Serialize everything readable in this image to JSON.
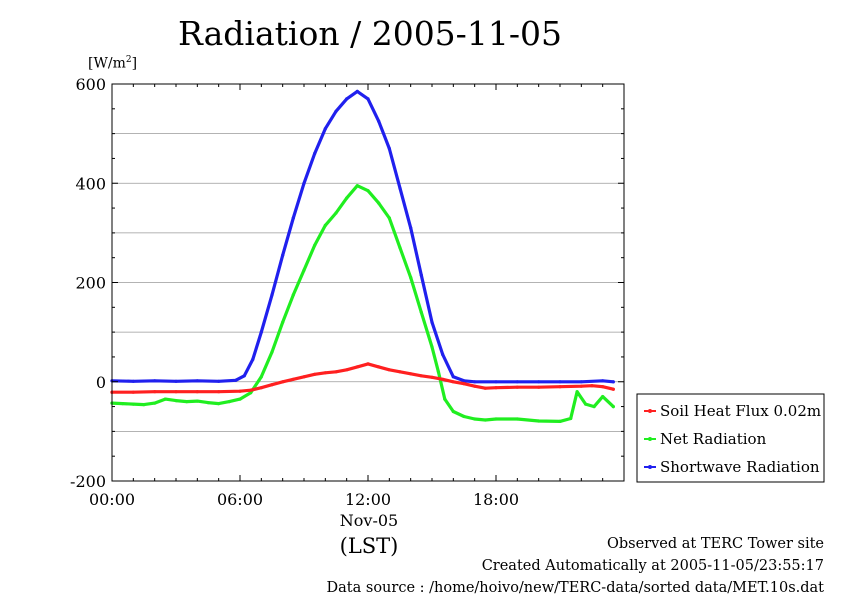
{
  "chart_data": {
    "type": "line",
    "title": "Radiation / 2005-11-05",
    "ylabel_unit": "[W/m",
    "ylabel_unit_sup": "2",
    "ylabel_unit_close": "]",
    "ylim": [
      -200,
      600
    ],
    "yticks": [
      -200,
      0,
      200,
      400,
      600
    ],
    "xlim": [
      0,
      24
    ],
    "xticks": [
      {
        "value": 0,
        "label": "00:00"
      },
      {
        "value": 6,
        "label": "06:00"
      },
      {
        "value": 12,
        "label": "12:00"
      },
      {
        "value": 18,
        "label": "18:00"
      }
    ],
    "xlabel_date": "Nov-05",
    "xlabel": "(LST)",
    "grid": true,
    "legend_position": "right",
    "series": [
      {
        "name": "Soil Heat Flux 0.02m",
        "color": "#ff2020",
        "x": [
          0,
          1,
          2,
          3,
          4,
          5,
          6,
          6.5,
          7,
          7.5,
          8,
          8.5,
          9,
          9.5,
          10,
          10.5,
          11,
          11.5,
          12,
          12.5,
          13,
          13.5,
          14,
          14.5,
          15,
          15.5,
          16,
          16.5,
          17,
          17.5,
          18,
          19,
          20,
          21,
          22,
          22.5,
          23,
          23.5
        ],
        "y": [
          -21,
          -21,
          -20,
          -20,
          -20,
          -20,
          -19,
          -17,
          -12,
          -6,
          0,
          5,
          10,
          15,
          18,
          20,
          24,
          30,
          36,
          30,
          24,
          20,
          16,
          12,
          9,
          5,
          0,
          -4,
          -9,
          -13,
          -12,
          -11,
          -11,
          -10,
          -9,
          -8,
          -10,
          -15
        ]
      },
      {
        "name": "Net Radiation",
        "color": "#20ee20",
        "x": [
          0,
          0.5,
          1,
          1.5,
          2,
          2.5,
          3,
          3.5,
          4,
          4.5,
          5,
          5.5,
          6,
          6.5,
          7,
          7.5,
          8,
          8.5,
          9,
          9.5,
          10,
          10.5,
          11,
          11.5,
          12,
          12.5,
          13,
          13.5,
          14,
          14.5,
          15,
          15.3,
          15.6,
          16,
          16.5,
          17,
          17.5,
          18,
          19,
          20,
          21,
          21.5,
          21.8,
          22.2,
          22.6,
          23,
          23.5
        ],
        "y": [
          -43,
          -44,
          -45,
          -46,
          -43,
          -35,
          -38,
          -40,
          -39,
          -42,
          -44,
          -40,
          -35,
          -22,
          10,
          60,
          120,
          175,
          225,
          275,
          315,
          340,
          370,
          395,
          385,
          360,
          330,
          270,
          210,
          140,
          70,
          20,
          -35,
          -60,
          -70,
          -75,
          -77,
          -75,
          -75,
          -79,
          -80,
          -74,
          -20,
          -45,
          -50,
          -30,
          -50
        ]
      },
      {
        "name": "Shortwave Radiation",
        "color": "#2020ee",
        "x": [
          0,
          1,
          2,
          3,
          4,
          5,
          5.8,
          6.2,
          6.6,
          7,
          7.5,
          8,
          8.5,
          9,
          9.5,
          10,
          10.5,
          11,
          11.5,
          12,
          12.5,
          13,
          13.5,
          14,
          14.5,
          15,
          15.5,
          16,
          16.5,
          17,
          18,
          19,
          20,
          21,
          22,
          23,
          23.5
        ],
        "y": [
          2,
          1,
          2,
          1,
          2,
          1,
          3,
          12,
          45,
          100,
          175,
          255,
          330,
          400,
          460,
          510,
          545,
          570,
          585,
          570,
          525,
          470,
          390,
          310,
          215,
          120,
          55,
          10,
          2,
          0,
          0,
          0,
          0,
          0,
          0,
          2,
          0
        ]
      }
    ]
  },
  "footer": {
    "line1": "Observed at TERC Tower site",
    "line2": "Created Automatically at 2005-11-05/23:55:17",
    "line3": "Data source : /home/hoivo/new/TERC-data/sorted  data/MET.10s.dat"
  }
}
